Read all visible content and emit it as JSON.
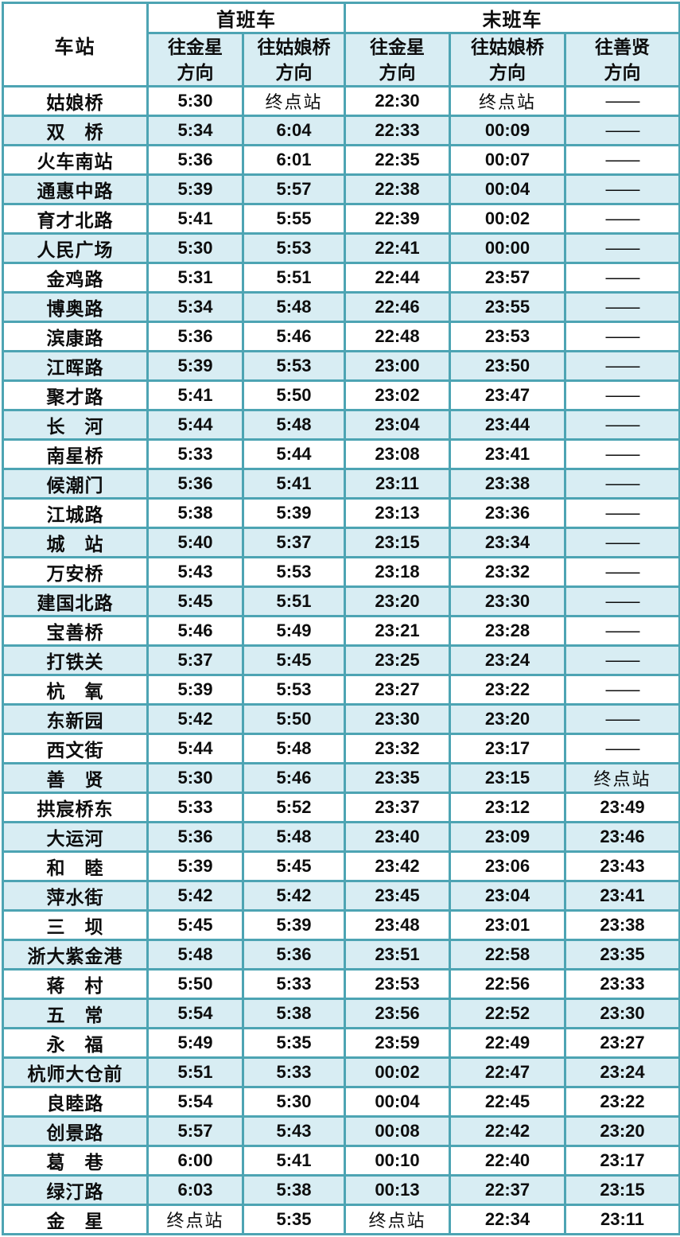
{
  "colors": {
    "border": "#4da4b3",
    "border_dark": "#3f93a2",
    "row_alt": "#d8edf3",
    "row_white": "#ffffff",
    "text": "#0d0d0d"
  },
  "header": {
    "station_label": "车站",
    "first_train_label": "首班车",
    "last_train_label": "末班车",
    "directions": [
      "往金星\n方向",
      "往姑娘桥\n方向",
      "往金星\n方向",
      "往姑娘桥\n方向",
      "往善贤\n方向"
    ]
  },
  "terminus_label": "终点站",
  "no_service_label": "——",
  "chart_data": {
    "type": "table",
    "columns": [
      "车站",
      "首班车 往金星方向",
      "首班车 往姑娘桥方向",
      "末班车 往金星方向",
      "末班车 往姑娘桥方向",
      "末班车 往善贤方向"
    ],
    "rows": [
      [
        "姑娘桥",
        "5:30",
        "终点站",
        "22:30",
        "终点站",
        "——"
      ],
      [
        "双　桥",
        "5:34",
        "6:04",
        "22:33",
        "00:09",
        "——"
      ],
      [
        "火车南站",
        "5:36",
        "6:01",
        "22:35",
        "00:07",
        "——"
      ],
      [
        "通惠中路",
        "5:39",
        "5:57",
        "22:38",
        "00:04",
        "——"
      ],
      [
        "育才北路",
        "5:41",
        "5:55",
        "22:39",
        "00:02",
        "——"
      ],
      [
        "人民广场",
        "5:30",
        "5:53",
        "22:41",
        "00:00",
        "——"
      ],
      [
        "金鸡路",
        "5:31",
        "5:51",
        "22:44",
        "23:57",
        "——"
      ],
      [
        "博奥路",
        "5:34",
        "5:48",
        "22:46",
        "23:55",
        "——"
      ],
      [
        "滨康路",
        "5:36",
        "5:46",
        "22:48",
        "23:53",
        "——"
      ],
      [
        "江晖路",
        "5:39",
        "5:53",
        "23:00",
        "23:50",
        "——"
      ],
      [
        "聚才路",
        "5:41",
        "5:50",
        "23:02",
        "23:47",
        "——"
      ],
      [
        "长　河",
        "5:44",
        "5:48",
        "23:04",
        "23:44",
        "——"
      ],
      [
        "南星桥",
        "5:33",
        "5:44",
        "23:08",
        "23:41",
        "——"
      ],
      [
        "候潮门",
        "5:36",
        "5:41",
        "23:11",
        "23:38",
        "——"
      ],
      [
        "江城路",
        "5:38",
        "5:39",
        "23:13",
        "23:36",
        "——"
      ],
      [
        "城　站",
        "5:40",
        "5:37",
        "23:15",
        "23:34",
        "——"
      ],
      [
        "万安桥",
        "5:43",
        "5:53",
        "23:18",
        "23:32",
        "——"
      ],
      [
        "建国北路",
        "5:45",
        "5:51",
        "23:20",
        "23:30",
        "——"
      ],
      [
        "宝善桥",
        "5:46",
        "5:49",
        "23:21",
        "23:28",
        "——"
      ],
      [
        "打铁关",
        "5:37",
        "5:45",
        "23:25",
        "23:24",
        "——"
      ],
      [
        "杭　氧",
        "5:39",
        "5:53",
        "23:27",
        "23:22",
        "——"
      ],
      [
        "东新园",
        "5:42",
        "5:50",
        "23:30",
        "23:20",
        "——"
      ],
      [
        "西文街",
        "5:44",
        "5:48",
        "23:32",
        "23:17",
        "——"
      ],
      [
        "善　贤",
        "5:30",
        "5:46",
        "23:35",
        "23:15",
        "终点站"
      ],
      [
        "拱宸桥东",
        "5:33",
        "5:52",
        "23:37",
        "23:12",
        "23:49"
      ],
      [
        "大运河",
        "5:36",
        "5:48",
        "23:40",
        "23:09",
        "23:46"
      ],
      [
        "和　睦",
        "5:39",
        "5:45",
        "23:42",
        "23:06",
        "23:43"
      ],
      [
        "萍水街",
        "5:42",
        "5:42",
        "23:45",
        "23:04",
        "23:41"
      ],
      [
        "三　坝",
        "5:45",
        "5:39",
        "23:48",
        "23:01",
        "23:38"
      ],
      [
        "浙大紫金港",
        "5:48",
        "5:36",
        "23:51",
        "22:58",
        "23:35"
      ],
      [
        "蒋　村",
        "5:50",
        "5:33",
        "23:53",
        "22:56",
        "23:33"
      ],
      [
        "五　常",
        "5:54",
        "5:38",
        "23:56",
        "22:52",
        "23:30"
      ],
      [
        "永　福",
        "5:49",
        "5:35",
        "23:59",
        "22:49",
        "23:27"
      ],
      [
        "杭师大仓前",
        "5:51",
        "5:33",
        "00:02",
        "22:47",
        "23:24"
      ],
      [
        "良睦路",
        "5:54",
        "5:30",
        "00:04",
        "22:45",
        "23:22"
      ],
      [
        "创景路",
        "5:57",
        "5:43",
        "00:08",
        "22:42",
        "23:20"
      ],
      [
        "葛　巷",
        "6:00",
        "5:41",
        "00:10",
        "22:40",
        "23:17"
      ],
      [
        "绿汀路",
        "6:03",
        "5:38",
        "00:13",
        "22:37",
        "23:15"
      ],
      [
        "金　星",
        "终点站",
        "5:35",
        "终点站",
        "22:34",
        "23:11"
      ]
    ]
  }
}
